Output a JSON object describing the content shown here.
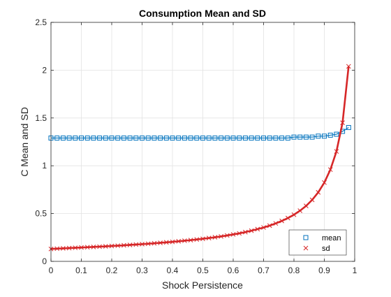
{
  "chart_data": {
    "type": "line",
    "title": "Consumption Mean and SD",
    "xlabel": "Shock Persistence",
    "ylabel": "C Mean and SD",
    "xlim": [
      0,
      1
    ],
    "ylim": [
      0,
      2.5
    ],
    "xticks": [
      0,
      0.1,
      0.2,
      0.3,
      0.4,
      0.5,
      0.6,
      0.7,
      0.8,
      0.9,
      1
    ],
    "xtick_labels": [
      "0",
      "0.1",
      "0.2",
      "0.3",
      "0.4",
      "0.5",
      "0.6",
      "0.7",
      "0.8",
      "0.9",
      "1"
    ],
    "yticks": [
      0,
      0.5,
      1,
      1.5,
      2,
      2.5
    ],
    "ytick_labels": [
      "0",
      "0.5",
      "1",
      "1.5",
      "2",
      "2.5"
    ],
    "grid": true,
    "legend_position": "bottom-right",
    "x": [
      0.0,
      0.02,
      0.04,
      0.06,
      0.08,
      0.1,
      0.12,
      0.14,
      0.16,
      0.18,
      0.2,
      0.22,
      0.24,
      0.26,
      0.28,
      0.3,
      0.32,
      0.34,
      0.36,
      0.38,
      0.4,
      0.42,
      0.44,
      0.46,
      0.48,
      0.5,
      0.52,
      0.54,
      0.56,
      0.58,
      0.6,
      0.62,
      0.64,
      0.66,
      0.68,
      0.7,
      0.72,
      0.74,
      0.76,
      0.78,
      0.8,
      0.82,
      0.84,
      0.86,
      0.88,
      0.9,
      0.92,
      0.94,
      0.96,
      0.98
    ],
    "series": [
      {
        "name": "mean",
        "color": "#0072BD",
        "marker": "square",
        "values": [
          1.29,
          1.29,
          1.29,
          1.29,
          1.29,
          1.29,
          1.29,
          1.29,
          1.29,
          1.29,
          1.29,
          1.29,
          1.29,
          1.29,
          1.29,
          1.29,
          1.29,
          1.29,
          1.29,
          1.29,
          1.29,
          1.29,
          1.29,
          1.29,
          1.29,
          1.29,
          1.29,
          1.29,
          1.29,
          1.29,
          1.29,
          1.29,
          1.29,
          1.29,
          1.29,
          1.29,
          1.29,
          1.29,
          1.29,
          1.29,
          1.3,
          1.3,
          1.3,
          1.3,
          1.31,
          1.31,
          1.32,
          1.33,
          1.36,
          1.4
        ]
      },
      {
        "name": "sd",
        "color": "#D62728",
        "marker": "x",
        "values": [
          0.13,
          0.133,
          0.136,
          0.139,
          0.142,
          0.145,
          0.148,
          0.151,
          0.154,
          0.157,
          0.161,
          0.164,
          0.168,
          0.172,
          0.176,
          0.18,
          0.184,
          0.189,
          0.194,
          0.199,
          0.204,
          0.21,
          0.216,
          0.222,
          0.229,
          0.236,
          0.244,
          0.252,
          0.261,
          0.271,
          0.282,
          0.293,
          0.306,
          0.321,
          0.337,
          0.354,
          0.374,
          0.397,
          0.423,
          0.453,
          0.488,
          0.53,
          0.58,
          0.643,
          0.722,
          0.824,
          0.96,
          1.15,
          1.45,
          2.04
        ]
      }
    ]
  }
}
